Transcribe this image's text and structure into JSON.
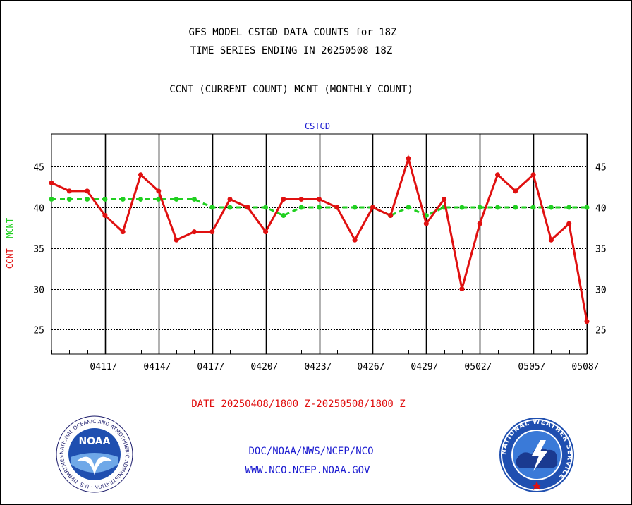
{
  "header": {
    "title_line1": "GFS MODEL CSTGD DATA COUNTS for 18Z",
    "title_line2": "TIME SERIES ENDING IN 20250508 18Z",
    "title_line3": "CCNT (CURRENT COUNT) MCNT (MONTHLY COUNT)"
  },
  "footer": {
    "date_range": "DATE 20250408/1800 Z-20250508/1800 Z",
    "link_path": "DOC/NOAA/NWS/NCEP/NCO",
    "link_site": "WWW.NCO.NCEP.NOAA.GOV"
  },
  "logos": {
    "noaa_text": "NOAA",
    "noaa_ring": "NATIONAL OCEANIC AND ATMOSPHERIC ADMINISTRATION · U.S. DEPARTMENT OF COMMERCE ·",
    "nws_ring": "NATIONAL WEATHER SERVICE"
  },
  "colors": {
    "ccnt": "#e01010",
    "mcnt": "#20d020",
    "label_blue": "#1a1ad0"
  },
  "chart_data": {
    "type": "line",
    "title": "CSTGD",
    "ylabel_ccnt": "CCNT",
    "ylabel_mcnt": "MCNT",
    "ylim": [
      22,
      49
    ],
    "yticks": [
      25,
      30,
      35,
      40,
      45
    ],
    "x_dates": [
      "0408",
      "0409",
      "0410",
      "0411",
      "0412",
      "0413",
      "0414",
      "0415",
      "0416",
      "0417",
      "0418",
      "0419",
      "0420",
      "0421",
      "0422",
      "0423",
      "0424",
      "0425",
      "0426",
      "0427",
      "0428",
      "0429",
      "0430",
      "0501",
      "0502",
      "0503",
      "0504",
      "0505",
      "0506",
      "0507",
      "0508"
    ],
    "xtick_labels": [
      "0411/",
      "0414/",
      "0417/",
      "0420/",
      "0423/",
      "0426/",
      "0429/",
      "0502/",
      "0505/",
      "0508/"
    ],
    "grid": true,
    "series": [
      {
        "name": "CCNT",
        "values": [
          43,
          42,
          42,
          39,
          37,
          44,
          42,
          36,
          37,
          37,
          41,
          40,
          37,
          41,
          41,
          41,
          40,
          36,
          40,
          39,
          46,
          38,
          41,
          30,
          38,
          44,
          42,
          44,
          36,
          38,
          26
        ]
      },
      {
        "name": "MCNT",
        "values": [
          41,
          41,
          41,
          41,
          41,
          41,
          41,
          41,
          41,
          40,
          40,
          40,
          40,
          39,
          40,
          40,
          40,
          40,
          40,
          39,
          40,
          39,
          40,
          40,
          40,
          40,
          40,
          40,
          40,
          40,
          40
        ]
      }
    ]
  }
}
